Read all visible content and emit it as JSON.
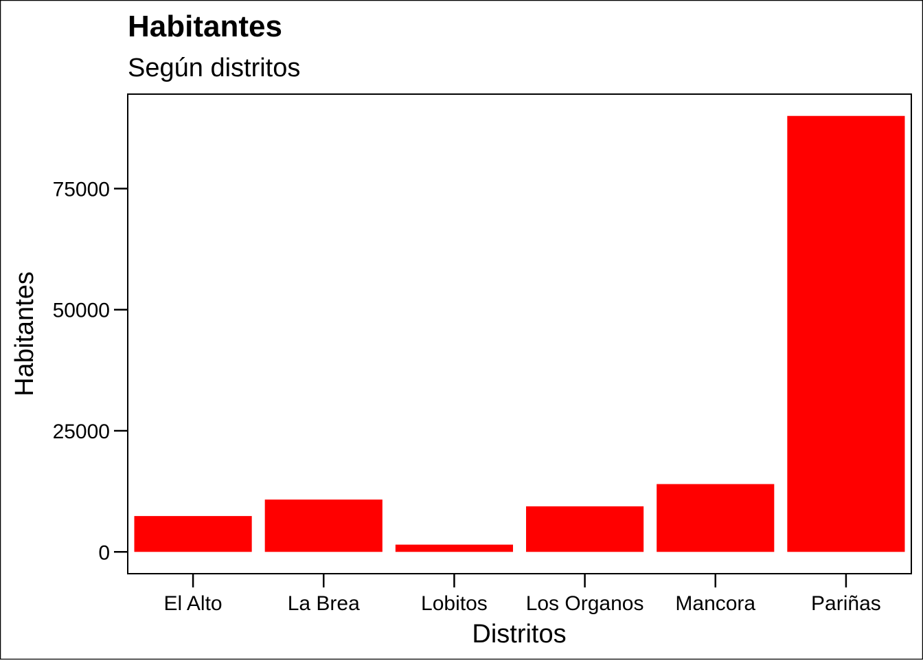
{
  "chart_data": {
    "type": "bar",
    "title": "Habitantes",
    "subtitle": "Según distritos",
    "xlabel": "Distritos",
    "ylabel": "Habitantes",
    "categories": [
      "El Alto",
      "La Brea",
      "Lobitos",
      "Los Organos",
      "Mancora",
      "Pariñas"
    ],
    "values": [
      7400,
      10800,
      1500,
      9400,
      14000,
      90000
    ],
    "ylim": [
      -4500,
      94500
    ],
    "yticks": [
      0,
      25000,
      50000,
      75000
    ],
    "ytick_labels": [
      "0",
      "25000",
      "50000",
      "75000"
    ],
    "bar_color": "#ff0000",
    "grid": false,
    "legend": "none"
  }
}
